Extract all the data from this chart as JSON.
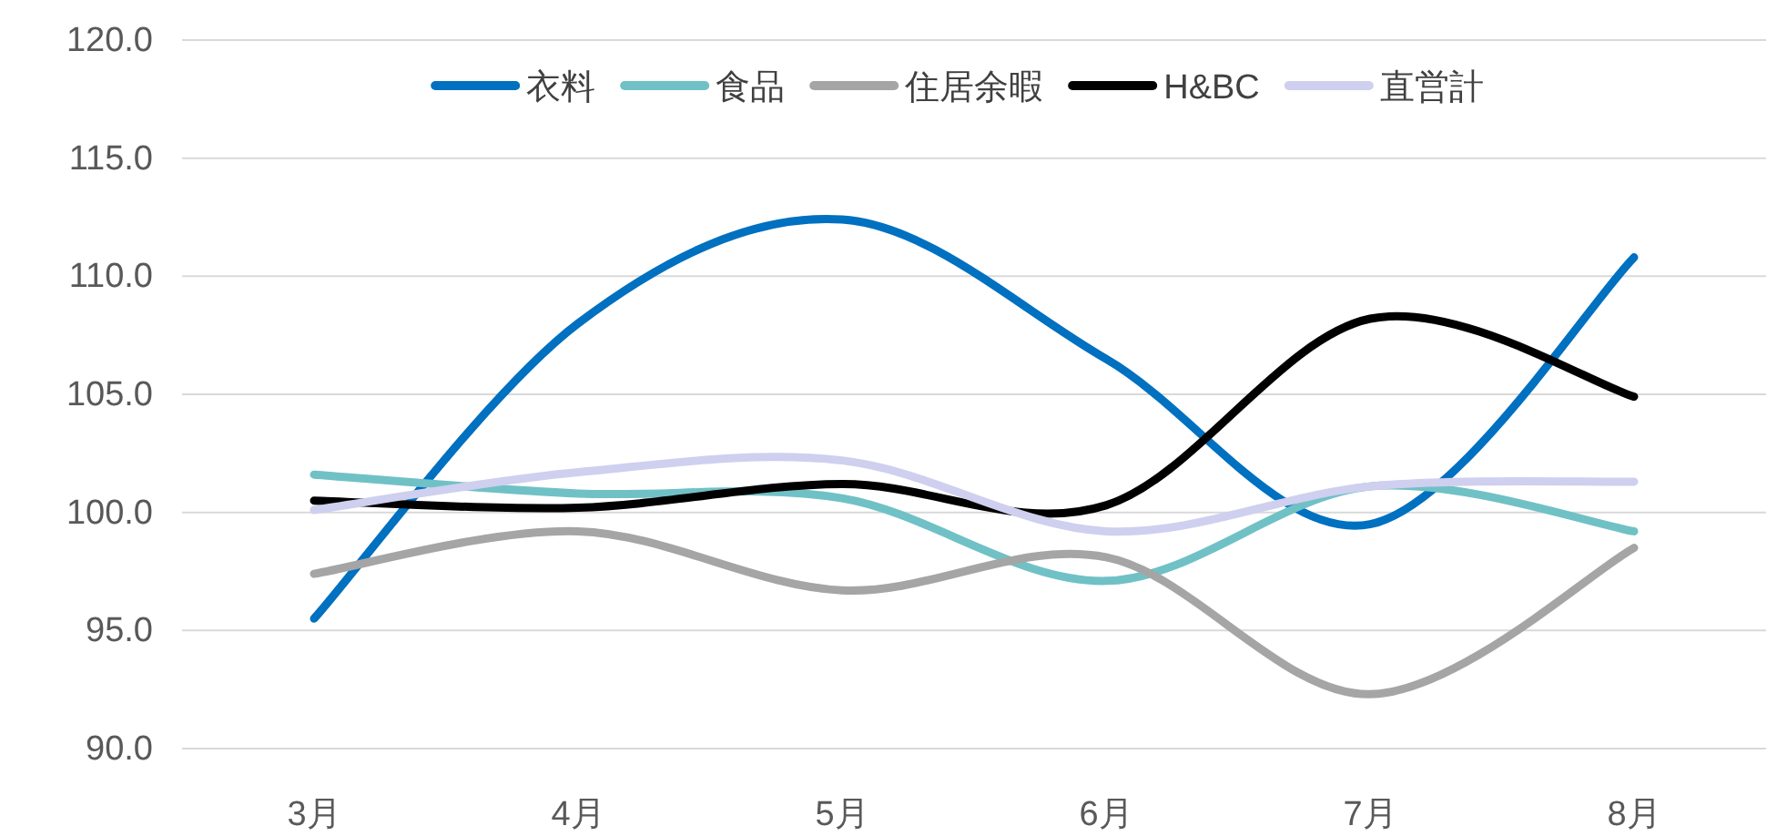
{
  "chart_data": {
    "type": "line",
    "categories": [
      "3月",
      "4月",
      "5月",
      "6月",
      "7月",
      "8月"
    ],
    "series": [
      {
        "name": "衣料",
        "color": "#0070c0",
        "values": [
          95.5,
          108.0,
          112.4,
          106.5,
          99.5,
          110.8
        ]
      },
      {
        "name": "食品",
        "color": "#70c1c6",
        "values": [
          101.6,
          100.8,
          100.6,
          97.1,
          101.1,
          99.2
        ]
      },
      {
        "name": "住居余暇",
        "color": "#a5a5a5",
        "values": [
          97.4,
          99.2,
          96.7,
          98.1,
          92.3,
          98.5
        ]
      },
      {
        "name": "H&BC",
        "color": "#000000",
        "values": [
          100.5,
          100.2,
          101.2,
          100.3,
          108.2,
          104.9
        ]
      },
      {
        "name": "直営計",
        "color": "#cfcfef",
        "values": [
          100.1,
          101.7,
          102.2,
          99.2,
          101.1,
          101.3
        ]
      }
    ],
    "ylim": [
      90,
      120
    ],
    "yticks": [
      {
        "value": 90,
        "label": "90.0"
      },
      {
        "value": 95,
        "label": "95.0"
      },
      {
        "value": 100,
        "label": "100.0"
      },
      {
        "value": 105,
        "label": "105.0"
      },
      {
        "value": 110,
        "label": "110.0"
      },
      {
        "value": 115,
        "label": "115.0"
      },
      {
        "value": 120,
        "label": "120.0"
      }
    ],
    "grid": "y",
    "legend": "top",
    "marker": "none",
    "line_style": "solid"
  }
}
